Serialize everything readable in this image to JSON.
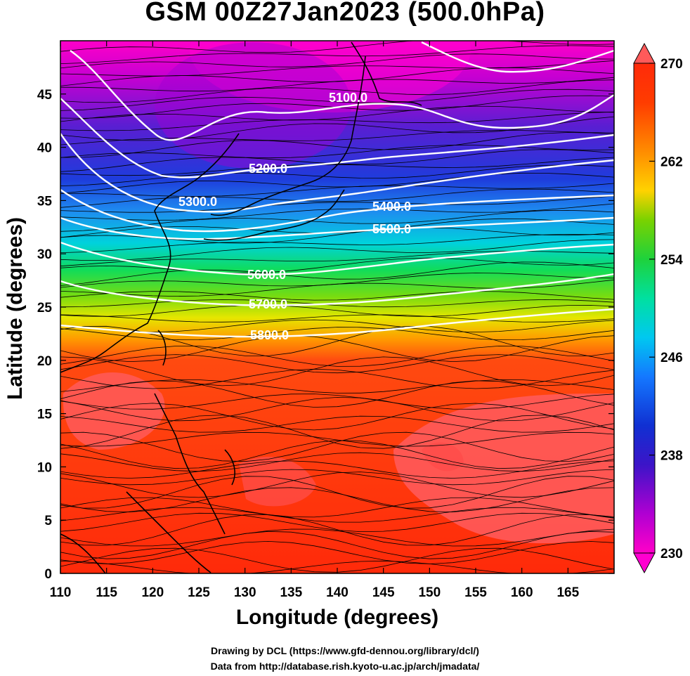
{
  "title": "GSM 00Z27Jan2023 (500.0hPa)",
  "xaxis": {
    "label": "Longitude (degrees)",
    "range": [
      110,
      170
    ],
    "ticks": [
      "110",
      "115",
      "120",
      "125",
      "130",
      "135",
      "140",
      "145",
      "150",
      "155",
      "160",
      "165"
    ]
  },
  "yaxis": {
    "label": "Latitude  (degrees)",
    "range": [
      0,
      50
    ],
    "ticks": [
      "0",
      "5",
      "10",
      "15",
      "20",
      "25",
      "30",
      "35",
      "40",
      "45"
    ]
  },
  "colorbar": {
    "range": [
      230,
      270
    ],
    "ticks": [
      "230",
      "238",
      "246",
      "254",
      "262",
      "270"
    ],
    "colors": [
      "#ff00c8",
      "#8a00d2",
      "#1010c8",
      "#1478ff",
      "#00d2ff",
      "#00e070",
      "#2ed010",
      "#a6e000",
      "#ffe000",
      "#ff8c00",
      "#ff3c00",
      "#ff2a0a"
    ]
  },
  "contours": [
    {
      "label": "5100.0"
    },
    {
      "label": "5200.0"
    },
    {
      "label": "5300.0"
    },
    {
      "label": "5400.0"
    },
    {
      "label": "5500.0"
    },
    {
      "label": "5600.0"
    },
    {
      "label": "5700.0"
    },
    {
      "label": "5800.0"
    }
  ],
  "credits": {
    "line1": "Drawing by DCL (https://www.gfd-dennou.org/library/dcl/)",
    "line2": "Data from http://database.rish.kyoto-u.ac.jp/arch/jmadata/"
  }
}
